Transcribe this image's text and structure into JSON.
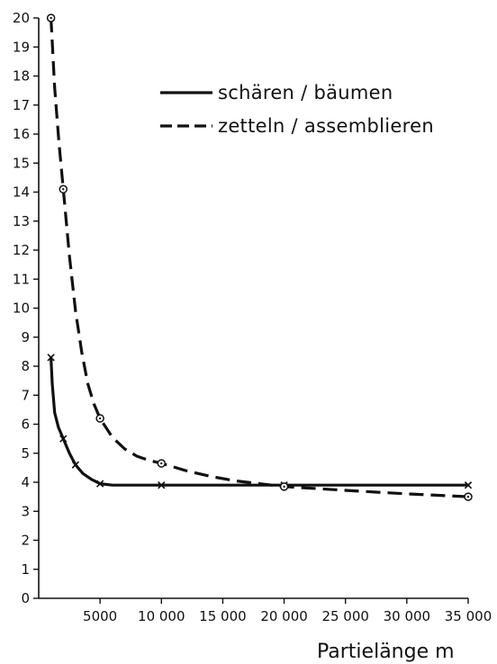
{
  "chart_data": {
    "type": "line",
    "title": "",
    "xlabel": "Partielänge  m",
    "ylabel": "",
    "xlim": [
      0,
      35000
    ],
    "ylim": [
      0,
      20
    ],
    "x_ticks": [
      5000,
      10000,
      15000,
      20000,
      25000,
      30000,
      35000
    ],
    "x_tick_labels": [
      "5000",
      "10 000",
      "15 000",
      "20 000",
      "25 000",
      "30 000",
      "35 000"
    ],
    "y_ticks": [
      0,
      1,
      2,
      3,
      4,
      5,
      6,
      7,
      8,
      9,
      10,
      11,
      12,
      13,
      14,
      15,
      16,
      17,
      18,
      19,
      20
    ],
    "y_tick_labels": [
      "0",
      "1",
      "2",
      "3",
      "4",
      "5",
      "6",
      "7",
      "8",
      "9",
      "10",
      "11",
      "12",
      "13",
      "14",
      "15",
      "16",
      "17",
      "18",
      "19",
      "20"
    ],
    "grid": false,
    "legend_position": "top-right",
    "series": [
      {
        "name": "schären / bäumen",
        "line_style": "solid",
        "marker": "x",
        "color": "#111111",
        "points": [
          [
            1000,
            8.3
          ],
          [
            2000,
            5.5
          ],
          [
            3000,
            4.6
          ],
          [
            5000,
            3.95
          ],
          [
            10000,
            3.9
          ],
          [
            20000,
            3.9
          ],
          [
            35000,
            3.9
          ]
        ],
        "curve": [
          [
            1000,
            8.3
          ],
          [
            1100,
            7.4
          ],
          [
            1300,
            6.4
          ],
          [
            1600,
            5.9
          ],
          [
            2000,
            5.5
          ],
          [
            2500,
            5.0
          ],
          [
            3000,
            4.6
          ],
          [
            3600,
            4.3
          ],
          [
            4300,
            4.1
          ],
          [
            5000,
            3.95
          ],
          [
            6000,
            3.9
          ],
          [
            10000,
            3.9
          ],
          [
            20000,
            3.9
          ],
          [
            35000,
            3.9
          ]
        ]
      },
      {
        "name": "zetteln / assemblieren",
        "line_style": "dashed",
        "marker": "circle",
        "color": "#111111",
        "points": [
          [
            1000,
            20.0
          ],
          [
            2000,
            14.1
          ],
          [
            5000,
            6.2
          ],
          [
            10000,
            4.65
          ],
          [
            20000,
            3.85
          ],
          [
            35000,
            3.5
          ]
        ],
        "curve": [
          [
            1000,
            20.0
          ],
          [
            1300,
            17.6
          ],
          [
            1650,
            15.7
          ],
          [
            2000,
            14.1
          ],
          [
            2500,
            11.8
          ],
          [
            3000,
            9.9
          ],
          [
            3500,
            8.5
          ],
          [
            4000,
            7.4
          ],
          [
            4500,
            6.7
          ],
          [
            5000,
            6.2
          ],
          [
            6000,
            5.55
          ],
          [
            7000,
            5.15
          ],
          [
            8000,
            4.9
          ],
          [
            9000,
            4.75
          ],
          [
            10000,
            4.65
          ],
          [
            12000,
            4.4
          ],
          [
            14000,
            4.2
          ],
          [
            16000,
            4.05
          ],
          [
            18000,
            3.95
          ],
          [
            20000,
            3.85
          ],
          [
            25000,
            3.72
          ],
          [
            30000,
            3.6
          ],
          [
            35000,
            3.5
          ]
        ]
      }
    ]
  }
}
